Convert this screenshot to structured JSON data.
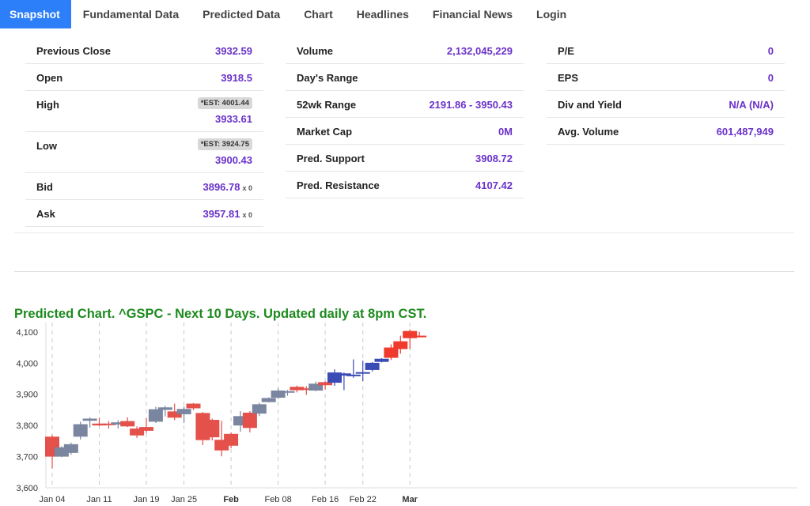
{
  "tabs": [
    {
      "label": "Snapshot",
      "active": true
    },
    {
      "label": "Fundamental Data"
    },
    {
      "label": "Predicted Data"
    },
    {
      "label": "Chart"
    },
    {
      "label": "Headlines"
    },
    {
      "label": "Financial News"
    },
    {
      "label": "Login"
    }
  ],
  "quote": {
    "previous_close": {
      "label": "Previous Close",
      "value": "3932.59"
    },
    "open": {
      "label": "Open",
      "value": "3918.5"
    },
    "high": {
      "label": "High",
      "est": "*EST: 4001.44",
      "value": "3933.61"
    },
    "low": {
      "label": "Low",
      "est": "*EST: 3924.75",
      "value": "3900.43"
    },
    "bid": {
      "label": "Bid",
      "value": "3896.78",
      "mult": "x 0"
    },
    "ask": {
      "label": "Ask",
      "value": "3957.81",
      "mult": "x 0"
    },
    "volume": {
      "label": "Volume",
      "value": "2,132,045,229"
    },
    "days_range": {
      "label": "Day's Range",
      "value": ""
    },
    "wk52_range": {
      "label": "52wk Range",
      "value": "2191.86 - 3950.43"
    },
    "market_cap": {
      "label": "Market Cap",
      "value": "0M"
    },
    "pred_support": {
      "label": "Pred. Support",
      "value": "3908.72"
    },
    "pred_resistance": {
      "label": "Pred. Resistance",
      "value": "4107.42"
    },
    "pe": {
      "label": "P/E",
      "value": "0"
    },
    "eps": {
      "label": "EPS",
      "value": "0"
    },
    "div_yield": {
      "label": "Div and Yield",
      "value": "N/A (N/A)"
    },
    "avg_volume": {
      "label": "Avg. Volume",
      "value": "601,487,949"
    }
  },
  "chart_title": "Predicted Chart. ^GSPC - Next 10 Days. Updated daily at 8pm CST.",
  "colors": {
    "up": "#7a859f",
    "down": "#e4504a",
    "up_light": "#cfd4df",
    "down_light": "#f1b7b4",
    "pred_up": "#3a4bb5",
    "pred_down": "#f03a2e",
    "title": "#1e8a1e",
    "value": "#6a32c9",
    "tab_active": "#2d7ff9"
  },
  "chart_data": {
    "type": "candlestick",
    "title": "Predicted Chart. ^GSPC - Next 10 Days. Updated daily at 8pm CST.",
    "ylim": [
      3600,
      4130
    ],
    "y_ticks": [
      "3,600",
      "3,700",
      "3,800",
      "3,900",
      "4,000",
      "4,100"
    ],
    "y_tick_values": [
      3600,
      3700,
      3800,
      3900,
      4000,
      4100
    ],
    "x_ticks": [
      {
        "label": "Jan 04",
        "index": 0,
        "bold": false
      },
      {
        "label": "Jan 11",
        "index": 5,
        "bold": false
      },
      {
        "label": "Jan 19",
        "index": 10,
        "bold": false
      },
      {
        "label": "Jan 25",
        "index": 14,
        "bold": false
      },
      {
        "label": "Feb",
        "index": 19,
        "bold": true
      },
      {
        "label": "Feb 08",
        "index": 24,
        "bold": false
      },
      {
        "label": "Feb 16",
        "index": 29,
        "bold": false
      },
      {
        "label": "Feb 22",
        "index": 33,
        "bold": false
      },
      {
        "label": "Mar",
        "index": 38,
        "bold": true
      }
    ],
    "grid": "vertical-dashed",
    "candles": [
      {
        "o": 3764,
        "h": 3770,
        "l": 3662,
        "c": 3700,
        "kind": "down"
      },
      {
        "o": 3700,
        "h": 3733,
        "l": 3698,
        "c": 3730,
        "kind": "up"
      },
      {
        "o": 3712,
        "h": 3745,
        "l": 3706,
        "c": 3740,
        "kind": "up"
      },
      {
        "o": 3764,
        "h": 3812,
        "l": 3755,
        "c": 3804,
        "kind": "up"
      },
      {
        "o": 3815,
        "h": 3826,
        "l": 3793,
        "c": 3822,
        "kind": "up"
      },
      {
        "o": 3806,
        "h": 3825,
        "l": 3798,
        "c": 3800,
        "kind": "down"
      },
      {
        "o": 3806,
        "h": 3814,
        "l": 3790,
        "c": 3803,
        "kind": "down"
      },
      {
        "o": 3803,
        "h": 3817,
        "l": 3790,
        "c": 3810,
        "kind": "up"
      },
      {
        "o": 3814,
        "h": 3826,
        "l": 3795,
        "c": 3797,
        "kind": "down"
      },
      {
        "o": 3790,
        "h": 3797,
        "l": 3760,
        "c": 3768,
        "kind": "down"
      },
      {
        "o": 3795,
        "h": 3824,
        "l": 3776,
        "c": 3783,
        "kind": "down"
      },
      {
        "o": 3812,
        "h": 3860,
        "l": 3808,
        "c": 3852,
        "kind": "up"
      },
      {
        "o": 3850,
        "h": 3863,
        "l": 3829,
        "c": 3858,
        "kind": "up"
      },
      {
        "o": 3845,
        "h": 3870,
        "l": 3817,
        "c": 3825,
        "kind": "down"
      },
      {
        "o": 3853,
        "h": 3860,
        "l": 3808,
        "c": 3836,
        "kind": "up"
      },
      {
        "o": 3870,
        "h": 3872,
        "l": 3849,
        "c": 3855,
        "kind": "down"
      },
      {
        "o": 3840,
        "h": 3843,
        "l": 3737,
        "c": 3753,
        "kind": "down"
      },
      {
        "o": 3818,
        "h": 3822,
        "l": 3752,
        "c": 3762,
        "kind": "down"
      },
      {
        "o": 3754,
        "h": 3815,
        "l": 3701,
        "c": 3720,
        "kind": "down"
      },
      {
        "o": 3773,
        "h": 3778,
        "l": 3727,
        "c": 3735,
        "kind": "down"
      },
      {
        "o": 3800,
        "h": 3846,
        "l": 3780,
        "c": 3830,
        "kind": "up"
      },
      {
        "o": 3841,
        "h": 3846,
        "l": 3778,
        "c": 3792,
        "kind": "down"
      },
      {
        "o": 3838,
        "h": 3873,
        "l": 3830,
        "c": 3868,
        "kind": "up"
      },
      {
        "o": 3875,
        "h": 3890,
        "l": 3874,
        "c": 3888,
        "kind": "up"
      },
      {
        "o": 3889,
        "h": 3919,
        "l": 3885,
        "c": 3912,
        "kind": "up"
      },
      {
        "o": 3906,
        "h": 3914,
        "l": 3895,
        "c": 3910,
        "kind": "up"
      },
      {
        "o": 3924,
        "h": 3928,
        "l": 3906,
        "c": 3913,
        "kind": "down"
      },
      {
        "o": 3919,
        "h": 3926,
        "l": 3898,
        "c": 3916,
        "kind": "down"
      },
      {
        "o": 3912,
        "h": 3941,
        "l": 3910,
        "c": 3934,
        "kind": "up"
      },
      {
        "o": 3929,
        "h": 3942,
        "l": 3915,
        "c": 3939,
        "kind": "down"
      },
      {
        "o": 3937,
        "h": 3980,
        "l": 3927,
        "c": 3970,
        "kind": "pred_up"
      },
      {
        "o": 3960,
        "h": 3970,
        "l": 3913,
        "c": 3967,
        "kind": "pred_up"
      },
      {
        "o": 3958,
        "h": 4012,
        "l": 3953,
        "c": 3963,
        "kind": "pred_up"
      },
      {
        "o": 3969,
        "h": 4008,
        "l": 3942,
        "c": 3971,
        "kind": "pred_up"
      },
      {
        "o": 3978,
        "h": 4003,
        "l": 3973,
        "c": 4001,
        "kind": "pred_up"
      },
      {
        "o": 4004,
        "h": 4016,
        "l": 4002,
        "c": 4014,
        "kind": "pred_up"
      },
      {
        "o": 4017,
        "h": 4060,
        "l": 4010,
        "c": 4050,
        "kind": "pred_down"
      },
      {
        "o": 4045,
        "h": 4088,
        "l": 4030,
        "c": 4070,
        "kind": "pred_down"
      },
      {
        "o": 4080,
        "h": 4108,
        "l": 4045,
        "c": 4103,
        "kind": "pred_down"
      },
      {
        "o": 4085,
        "h": 4100,
        "l": 4082,
        "c": 4088,
        "kind": "pred_down"
      }
    ]
  }
}
